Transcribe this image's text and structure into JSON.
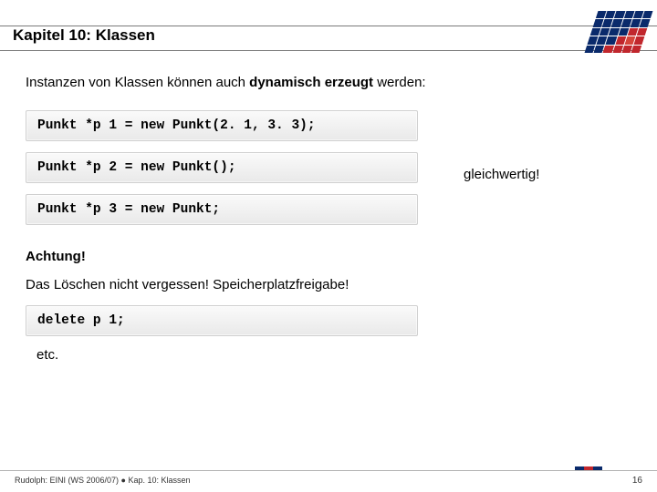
{
  "header": {
    "title": "Kapitel 10: Klassen"
  },
  "logo": {
    "colors": {
      "navy": "#0a2a6b",
      "red": "#c1272d",
      "red2": "#d6453a"
    },
    "cells": [
      [
        "navy",
        "navy",
        "navy",
        "navy",
        "navy",
        "navy"
      ],
      [
        "navy",
        "navy",
        "navy",
        "navy",
        "navy",
        "navy"
      ],
      [
        "navy",
        "navy",
        "navy",
        "navy",
        "red",
        "red"
      ],
      [
        "navy",
        "navy",
        "navy",
        "red",
        "red2",
        "red"
      ],
      [
        "navy",
        "navy",
        "red",
        "red",
        "red",
        "red"
      ]
    ]
  },
  "lead": {
    "prefix": "Instanzen von Klassen können auch ",
    "bold": "dynamisch erzeugt",
    "suffix": " werden:"
  },
  "code1": "Punkt *p 1 = new Punkt(2. 1, 3. 3);",
  "code2": "Punkt *p 2 = new Punkt();",
  "code3": "Punkt *p 3 = new Punkt;",
  "gleich": "gleichwertig!",
  "achtung": "Achtung!",
  "memtext": "Das Löschen nicht vergessen! Speicherplatzfreigabe!",
  "code4": "delete p 1;",
  "etc": "etc.",
  "footer": {
    "left": "Rudolph: EINI (WS 2006/07) ● Kap. 10: Klassen",
    "page": "16"
  }
}
